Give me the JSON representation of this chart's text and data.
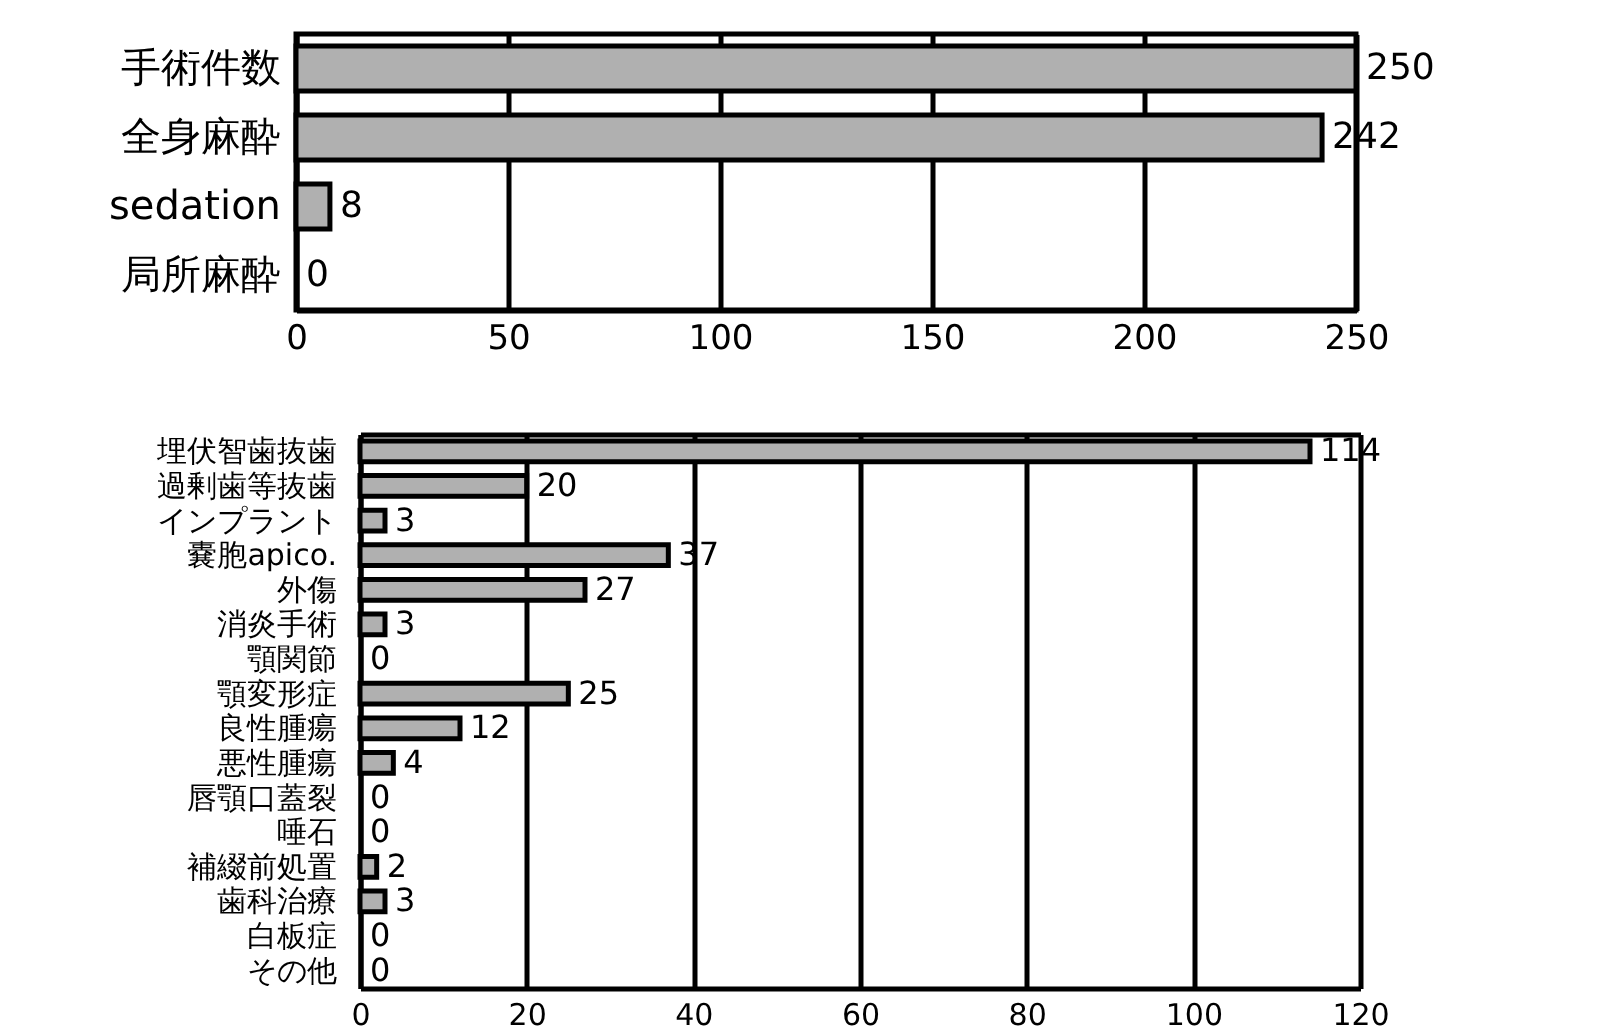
{
  "chart_data": [
    {
      "type": "bar",
      "orientation": "horizontal",
      "categories": [
        "手術件数",
        "全身麻酔",
        "sedation",
        "局所麻酔"
      ],
      "values": [
        250,
        242,
        8,
        0
      ],
      "color": "#b0b0b0",
      "xlim": [
        0,
        250
      ],
      "xticks": [
        0,
        50,
        100,
        150,
        200,
        250
      ],
      "grid": "x",
      "data_labels": true
    },
    {
      "type": "bar",
      "orientation": "horizontal",
      "categories": [
        "埋伏智歯抜歯",
        "過剰歯等抜歯",
        "インプラント",
        "嚢胞apico.",
        "外傷",
        "消炎手術",
        "顎関節",
        "顎変形症",
        "良性腫瘍",
        "悪性腫瘍",
        "唇顎口蓋裂",
        "唾石",
        "補綴前処置",
        "歯科治療",
        "白板症",
        "その他"
      ],
      "values": [
        114,
        20,
        3,
        37,
        27,
        3,
        0,
        25,
        12,
        4,
        0,
        0,
        2,
        3,
        0,
        0
      ],
      "color": "#b0b0b0",
      "xlim": [
        0,
        120
      ],
      "xticks": [
        0,
        20,
        40,
        60,
        80,
        100,
        120
      ],
      "grid": "x",
      "data_labels": true
    }
  ]
}
